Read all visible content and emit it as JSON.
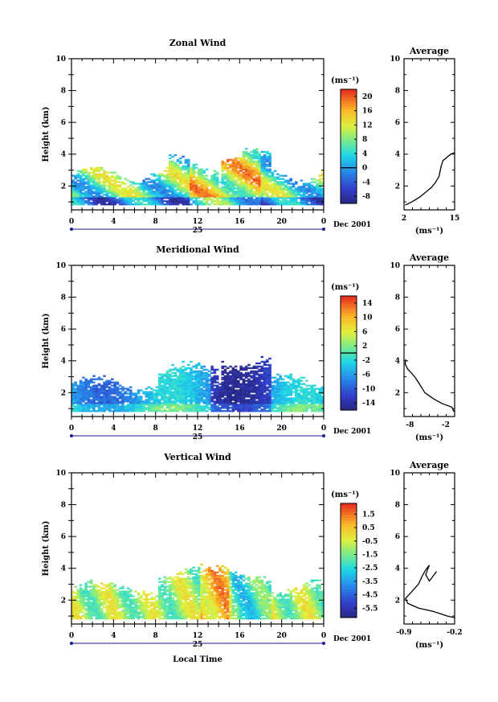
{
  "panels_common": {
    "ylabel": "Height (km)",
    "unit_label": "(ms⁻¹)",
    "avg_title": "Average",
    "date_label": "Dec 2001",
    "day_label": "25",
    "x_ticks": [
      "0",
      "4",
      "8",
      "12",
      "16",
      "20",
      "0"
    ],
    "y_ticks": [
      "2",
      "4",
      "6",
      "8",
      "10"
    ]
  },
  "xlabel": "Local Time",
  "chart_data": [
    {
      "type": "heatmap",
      "title": "Zonal Wind",
      "colorbar_ticks": [
        "20",
        "16",
        "12",
        "8",
        "4",
        "0",
        "-4",
        "-8"
      ],
      "colorbar_range": [
        -10,
        22
      ],
      "zero_level": 0,
      "avg_xticks": [
        "2",
        "15"
      ],
      "avg_xlim": [
        2,
        15
      ],
      "avg_profile": [
        [
          2.3,
          0.8
        ],
        [
          4,
          1.0
        ],
        [
          6,
          1.3
        ],
        [
          8,
          1.7
        ],
        [
          9,
          1.9
        ],
        [
          10,
          2.2
        ],
        [
          11,
          2.6
        ],
        [
          11.5,
          3.2
        ],
        [
          12,
          3.6
        ],
        [
          14,
          4.0
        ],
        [
          15,
          4.1
        ]
      ]
    },
    {
      "type": "heatmap",
      "title": "Meridional Wind",
      "colorbar_ticks": [
        "14",
        "10",
        "6",
        "2",
        "-2",
        "-6",
        "-10",
        "-14"
      ],
      "colorbar_range": [
        -16,
        16
      ],
      "zero_level": 0,
      "avg_xticks": [
        "-8",
        "-2"
      ],
      "avg_xlim": [
        -9,
        -0.5
      ],
      "avg_profile": [
        [
          -0.6,
          0.8
        ],
        [
          -1.0,
          1.1
        ],
        [
          -2.5,
          1.3
        ],
        [
          -4,
          1.6
        ],
        [
          -5.5,
          2.0
        ],
        [
          -6.5,
          2.6
        ],
        [
          -7.2,
          3.0
        ],
        [
          -8.4,
          3.5
        ],
        [
          -8.8,
          3.8
        ],
        [
          -8.7,
          4.1
        ]
      ]
    },
    {
      "type": "heatmap",
      "title": "Vertical Wind",
      "colorbar_ticks": [
        "1.5",
        "0.5",
        "-0.5",
        "-1.5",
        "-2.5",
        "-3.5",
        "-4.5",
        "-5.5"
      ],
      "colorbar_range": [
        -6.2,
        2.3
      ],
      "avg_xticks": [
        "-0.9",
        "-0.2"
      ],
      "avg_xlim": [
        -0.9,
        -0.2
      ],
      "avg_profile": [
        [
          -0.2,
          0.9
        ],
        [
          -0.3,
          1.0
        ],
        [
          -0.5,
          1.3
        ],
        [
          -0.7,
          1.5
        ],
        [
          -0.85,
          1.8
        ],
        [
          -0.88,
          2.1
        ],
        [
          -0.8,
          2.5
        ],
        [
          -0.7,
          3.0
        ],
        [
          -0.65,
          3.5
        ],
        [
          -0.6,
          3.9
        ],
        [
          -0.55,
          4.2
        ],
        [
          -0.6,
          3.6
        ],
        [
          -0.55,
          3.2
        ],
        [
          -0.5,
          3.5
        ],
        [
          -0.45,
          3.8
        ]
      ]
    }
  ]
}
